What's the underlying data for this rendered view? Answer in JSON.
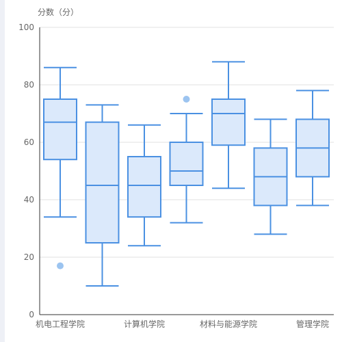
{
  "chart_data": {
    "type": "boxplot",
    "ylabel": "分数（分）",
    "ylim": [
      0,
      100
    ],
    "yticks": [
      0,
      20,
      40,
      60,
      80,
      100
    ],
    "grid": true,
    "categories": [
      "机电工程学院",
      "",
      "计算机学院",
      "",
      "材料与能源学院",
      "",
      "管理学院"
    ],
    "boxes": [
      {
        "min": 34,
        "q1": 54,
        "median": 67,
        "q3": 75,
        "max": 86,
        "outliers": [
          17
        ]
      },
      {
        "min": 10,
        "q1": 25,
        "median": 45,
        "q3": 67,
        "max": 73,
        "outliers": []
      },
      {
        "min": 24,
        "q1": 34,
        "median": 45,
        "q3": 55,
        "max": 66,
        "outliers": []
      },
      {
        "min": 32,
        "q1": 45,
        "median": 50,
        "q3": 60,
        "max": 70,
        "outliers": [
          75
        ]
      },
      {
        "min": 44,
        "q1": 59,
        "median": 70,
        "q3": 75,
        "max": 88,
        "outliers": []
      },
      {
        "min": 28,
        "q1": 38,
        "median": 48,
        "q3": 58,
        "max": 68,
        "outliers": []
      },
      {
        "min": 38,
        "q1": 48,
        "median": 58,
        "q3": 68,
        "max": 78,
        "outliers": []
      }
    ],
    "colors": {
      "stroke": "#4a90e2",
      "fill": "#dbe9fb",
      "outlier": "#9cc4f0",
      "grid": "#e0e0e0",
      "axis": "#333333"
    }
  }
}
